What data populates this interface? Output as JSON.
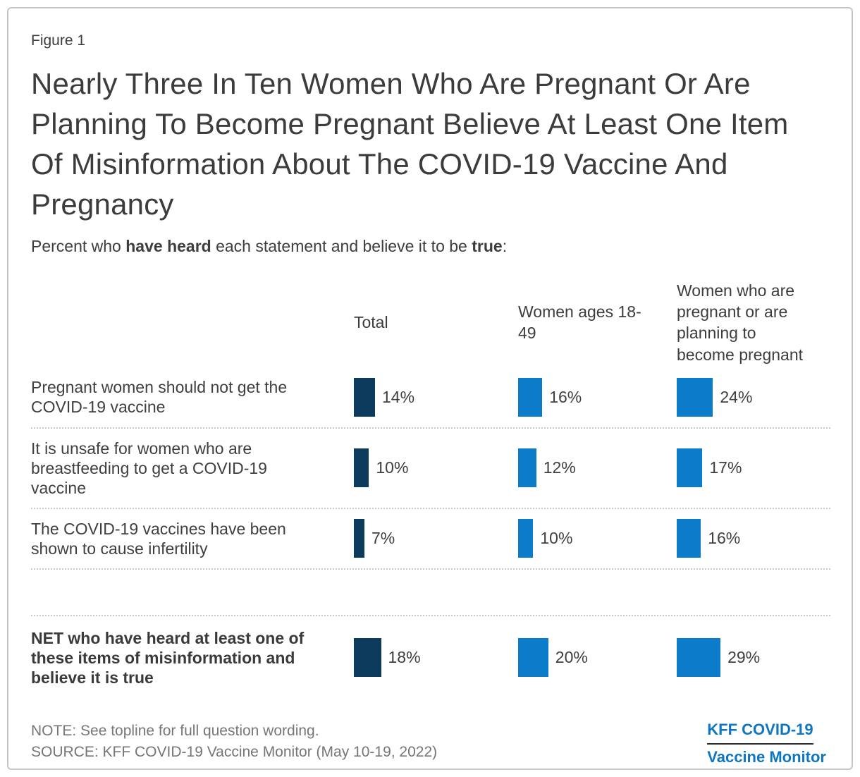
{
  "figure_label": "Figure 1",
  "title": "Nearly Three In Ten Women Who Are Pregnant Or Are Planning To Become Pregnant Believe At Least One Item Of Misinformation About The COVID-19 Vaccine And Pregnancy",
  "subtitle": {
    "part1": "Percent who ",
    "bold1": "have heard",
    "part2": " each statement and believe it to be ",
    "bold2": "true",
    "part3": ":"
  },
  "chart_data": {
    "type": "bar",
    "orientation": "horizontal",
    "unit": "%",
    "grid": false,
    "legend_position": "column-headers-top",
    "value_label_format": "{v}%",
    "categories": [
      "Pregnant women should not get the COVID-19 vaccine",
      "It is unsafe for women who are breastfeeding to get a COVID-19 vaccine",
      "The COVID-19 vaccines have been shown to cause infertility",
      "NET who have heard at least one of these items of misinformation and believe it is true"
    ],
    "emphasized_category_index": 3,
    "series": [
      {
        "name": "Total",
        "color": "#0d3b5e",
        "values": [
          14,
          10,
          7,
          18
        ]
      },
      {
        "name": "Women ages 18-49",
        "color": "#0a7cc9",
        "values": [
          16,
          12,
          10,
          20
        ]
      },
      {
        "name": "Women who are pregnant or are planning to become pregnant",
        "color": "#0a7cc9",
        "values": [
          24,
          17,
          16,
          29
        ]
      }
    ]
  },
  "note": "NOTE: See topline for full question wording.",
  "source": "SOURCE: KFF COVID-19 Vaccine Monitor (May 10-19, 2022)",
  "logo": {
    "line1": "KFF COVID-19",
    "line2": "Vaccine Monitor",
    "text_color": "#0e76c2"
  }
}
